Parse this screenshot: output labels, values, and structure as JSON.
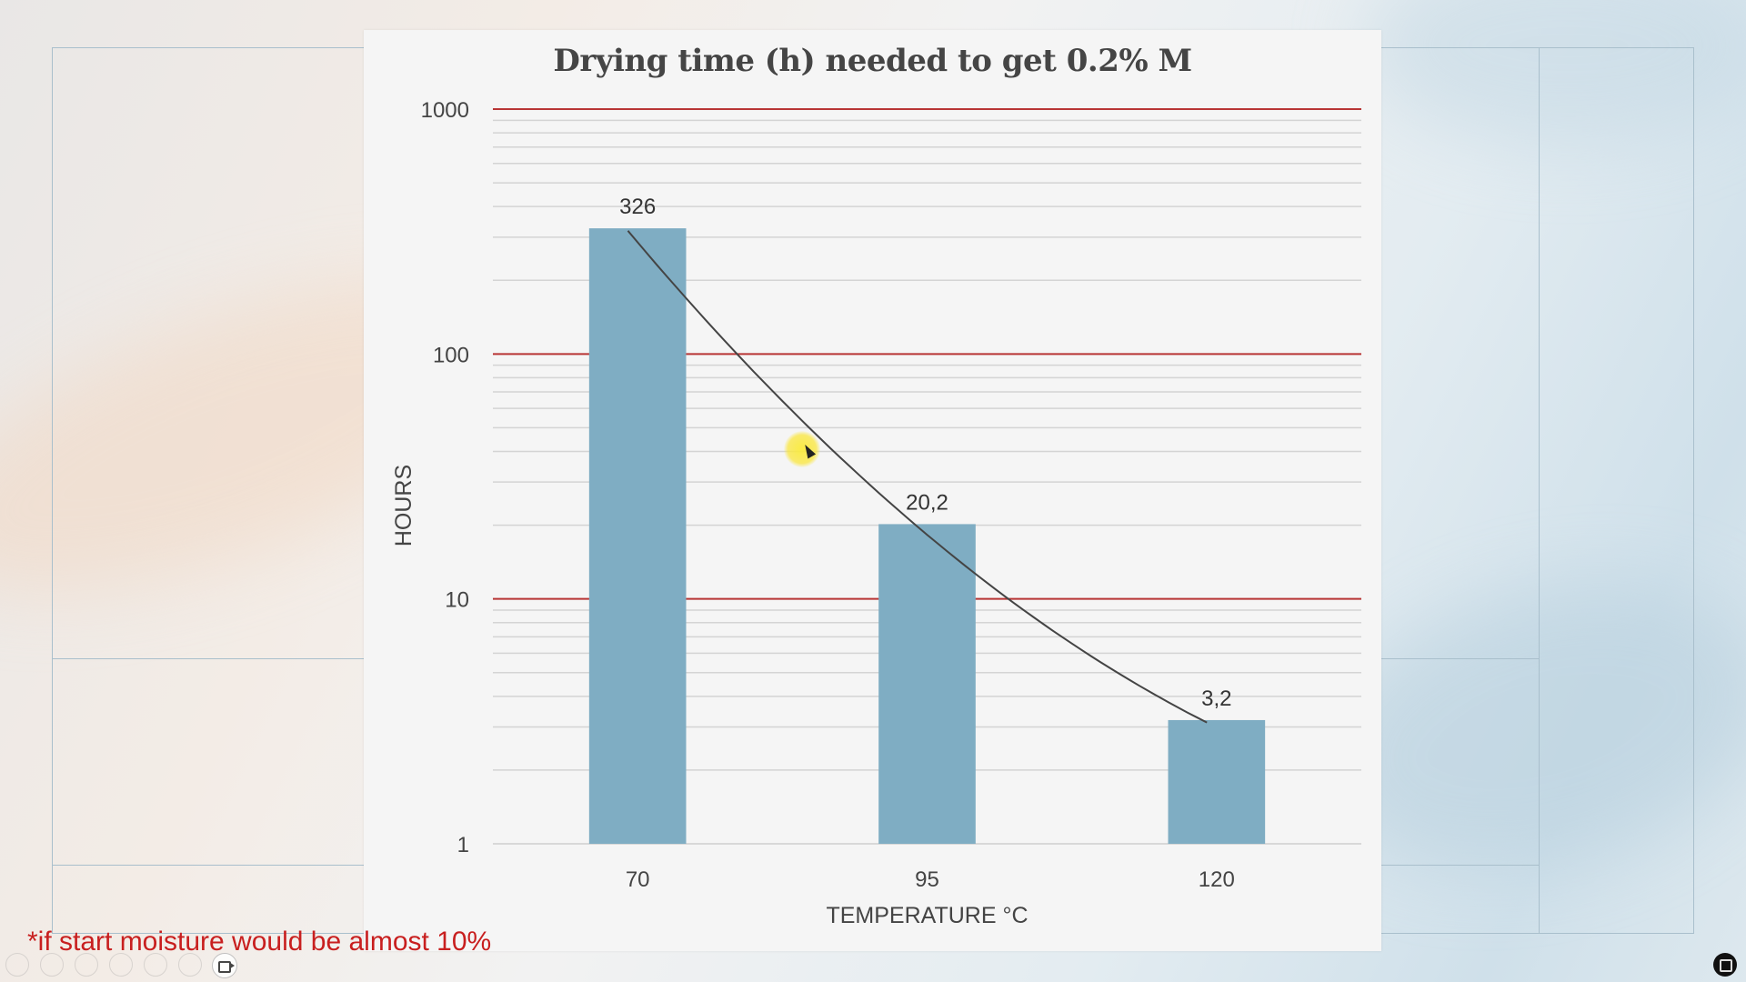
{
  "chart_data": {
    "type": "bar",
    "title": "Drying time (h) needed to get 0.2% M",
    "xlabel": "TEMPERATURE °C",
    "ylabel": "HOURS",
    "categories": [
      "70",
      "95",
      "120"
    ],
    "values": [
      326,
      20.2,
      3.2
    ],
    "data_labels": [
      "326",
      "20,2",
      "3,2"
    ],
    "yscale": "log",
    "ylim": [
      1,
      1000
    ],
    "yticks": [
      "1",
      "10",
      "100",
      "1000"
    ],
    "grid": true,
    "trendline": true,
    "legend": "none"
  },
  "footnote": "*if start moisture would be almost 10%",
  "colors": {
    "bar": "#7fadc3",
    "major_grid": "#b83535",
    "minor_grid": "#d4d4d4",
    "trendline": "#444444",
    "footnote": "#c81f1f"
  },
  "icons": [
    "video-camera-icon",
    "screen-share-icon"
  ]
}
